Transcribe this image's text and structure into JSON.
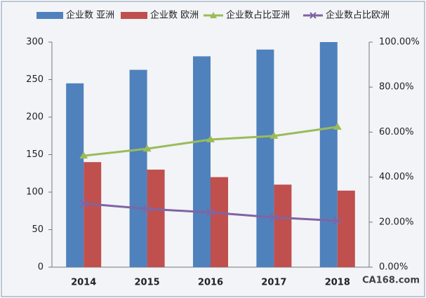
{
  "chart_data": {
    "type": "bar-line",
    "categories": [
      "2014",
      "2015",
      "2016",
      "2017",
      "2018"
    ],
    "series": [
      {
        "name": "企业数 亚洲",
        "type": "bar",
        "color": "#4f81bd",
        "values": [
          245,
          263,
          281,
          290,
          300
        ]
      },
      {
        "name": "企业数 欧洲",
        "type": "bar",
        "color": "#c0504d",
        "values": [
          140,
          130,
          120,
          110,
          102
        ]
      },
      {
        "name": "企业数占比亚洲",
        "type": "line",
        "axis": "y2",
        "marker": "triangle",
        "color": "#9bbb59",
        "values": [
          49.5,
          52.6,
          56.7,
          58.3,
          62.3
        ]
      },
      {
        "name": "企业数占比欧洲",
        "type": "line",
        "axis": "y2",
        "marker": "x",
        "color": "#8064a2",
        "values": [
          28.3,
          25.9,
          24.3,
          22.1,
          20.6
        ]
      }
    ],
    "ylim": [
      0,
      300
    ],
    "yticks": [
      0,
      50,
      100,
      150,
      200,
      250,
      300
    ],
    "y2lim": [
      0,
      100
    ],
    "y2ticks": [
      {
        "value": 0,
        "label": "0.00%"
      },
      {
        "value": 20,
        "label": "20.00%"
      },
      {
        "value": 40,
        "label": "40.00%"
      },
      {
        "value": 60,
        "label": "60.00%"
      },
      {
        "value": 80,
        "label": "80.00%"
      },
      {
        "value": 100,
        "label": "100.00%"
      }
    ],
    "legend": "top",
    "watermark": "CA168.com"
  }
}
